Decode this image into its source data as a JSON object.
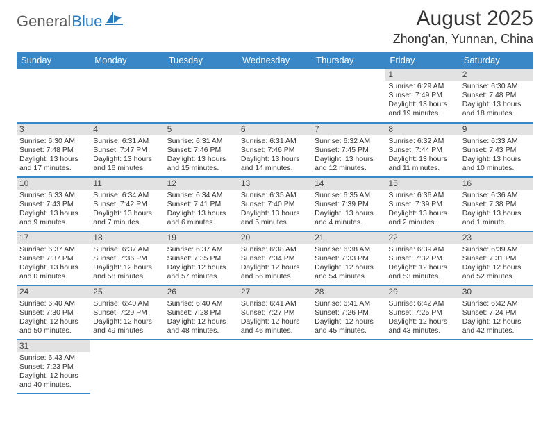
{
  "logo": {
    "text1": "General",
    "text2": "Blue"
  },
  "title": "August 2025",
  "location": "Zhong'an, Yunnan, China",
  "colors": {
    "header_bg": "#3a87c8",
    "header_text": "#ffffff",
    "daynum_bg": "#e2e2e2",
    "border": "#3a87c8",
    "logo_gray": "#5a5a5a",
    "logo_blue": "#2d7bbf"
  },
  "weekdays": [
    "Sunday",
    "Monday",
    "Tuesday",
    "Wednesday",
    "Thursday",
    "Friday",
    "Saturday"
  ],
  "weeks": [
    [
      null,
      null,
      null,
      null,
      null,
      {
        "n": "1",
        "sr": "Sunrise: 6:29 AM",
        "ss": "Sunset: 7:49 PM",
        "dl": "Daylight: 13 hours and 19 minutes."
      },
      {
        "n": "2",
        "sr": "Sunrise: 6:30 AM",
        "ss": "Sunset: 7:48 PM",
        "dl": "Daylight: 13 hours and 18 minutes."
      }
    ],
    [
      {
        "n": "3",
        "sr": "Sunrise: 6:30 AM",
        "ss": "Sunset: 7:48 PM",
        "dl": "Daylight: 13 hours and 17 minutes."
      },
      {
        "n": "4",
        "sr": "Sunrise: 6:31 AM",
        "ss": "Sunset: 7:47 PM",
        "dl": "Daylight: 13 hours and 16 minutes."
      },
      {
        "n": "5",
        "sr": "Sunrise: 6:31 AM",
        "ss": "Sunset: 7:46 PM",
        "dl": "Daylight: 13 hours and 15 minutes."
      },
      {
        "n": "6",
        "sr": "Sunrise: 6:31 AM",
        "ss": "Sunset: 7:46 PM",
        "dl": "Daylight: 13 hours and 14 minutes."
      },
      {
        "n": "7",
        "sr": "Sunrise: 6:32 AM",
        "ss": "Sunset: 7:45 PM",
        "dl": "Daylight: 13 hours and 12 minutes."
      },
      {
        "n": "8",
        "sr": "Sunrise: 6:32 AM",
        "ss": "Sunset: 7:44 PM",
        "dl": "Daylight: 13 hours and 11 minutes."
      },
      {
        "n": "9",
        "sr": "Sunrise: 6:33 AM",
        "ss": "Sunset: 7:43 PM",
        "dl": "Daylight: 13 hours and 10 minutes."
      }
    ],
    [
      {
        "n": "10",
        "sr": "Sunrise: 6:33 AM",
        "ss": "Sunset: 7:43 PM",
        "dl": "Daylight: 13 hours and 9 minutes."
      },
      {
        "n": "11",
        "sr": "Sunrise: 6:34 AM",
        "ss": "Sunset: 7:42 PM",
        "dl": "Daylight: 13 hours and 7 minutes."
      },
      {
        "n": "12",
        "sr": "Sunrise: 6:34 AM",
        "ss": "Sunset: 7:41 PM",
        "dl": "Daylight: 13 hours and 6 minutes."
      },
      {
        "n": "13",
        "sr": "Sunrise: 6:35 AM",
        "ss": "Sunset: 7:40 PM",
        "dl": "Daylight: 13 hours and 5 minutes."
      },
      {
        "n": "14",
        "sr": "Sunrise: 6:35 AM",
        "ss": "Sunset: 7:39 PM",
        "dl": "Daylight: 13 hours and 4 minutes."
      },
      {
        "n": "15",
        "sr": "Sunrise: 6:36 AM",
        "ss": "Sunset: 7:39 PM",
        "dl": "Daylight: 13 hours and 2 minutes."
      },
      {
        "n": "16",
        "sr": "Sunrise: 6:36 AM",
        "ss": "Sunset: 7:38 PM",
        "dl": "Daylight: 13 hours and 1 minute."
      }
    ],
    [
      {
        "n": "17",
        "sr": "Sunrise: 6:37 AM",
        "ss": "Sunset: 7:37 PM",
        "dl": "Daylight: 13 hours and 0 minutes."
      },
      {
        "n": "18",
        "sr": "Sunrise: 6:37 AM",
        "ss": "Sunset: 7:36 PM",
        "dl": "Daylight: 12 hours and 58 minutes."
      },
      {
        "n": "19",
        "sr": "Sunrise: 6:37 AM",
        "ss": "Sunset: 7:35 PM",
        "dl": "Daylight: 12 hours and 57 minutes."
      },
      {
        "n": "20",
        "sr": "Sunrise: 6:38 AM",
        "ss": "Sunset: 7:34 PM",
        "dl": "Daylight: 12 hours and 56 minutes."
      },
      {
        "n": "21",
        "sr": "Sunrise: 6:38 AM",
        "ss": "Sunset: 7:33 PM",
        "dl": "Daylight: 12 hours and 54 minutes."
      },
      {
        "n": "22",
        "sr": "Sunrise: 6:39 AM",
        "ss": "Sunset: 7:32 PM",
        "dl": "Daylight: 12 hours and 53 minutes."
      },
      {
        "n": "23",
        "sr": "Sunrise: 6:39 AM",
        "ss": "Sunset: 7:31 PM",
        "dl": "Daylight: 12 hours and 52 minutes."
      }
    ],
    [
      {
        "n": "24",
        "sr": "Sunrise: 6:40 AM",
        "ss": "Sunset: 7:30 PM",
        "dl": "Daylight: 12 hours and 50 minutes."
      },
      {
        "n": "25",
        "sr": "Sunrise: 6:40 AM",
        "ss": "Sunset: 7:29 PM",
        "dl": "Daylight: 12 hours and 49 minutes."
      },
      {
        "n": "26",
        "sr": "Sunrise: 6:40 AM",
        "ss": "Sunset: 7:28 PM",
        "dl": "Daylight: 12 hours and 48 minutes."
      },
      {
        "n": "27",
        "sr": "Sunrise: 6:41 AM",
        "ss": "Sunset: 7:27 PM",
        "dl": "Daylight: 12 hours and 46 minutes."
      },
      {
        "n": "28",
        "sr": "Sunrise: 6:41 AM",
        "ss": "Sunset: 7:26 PM",
        "dl": "Daylight: 12 hours and 45 minutes."
      },
      {
        "n": "29",
        "sr": "Sunrise: 6:42 AM",
        "ss": "Sunset: 7:25 PM",
        "dl": "Daylight: 12 hours and 43 minutes."
      },
      {
        "n": "30",
        "sr": "Sunrise: 6:42 AM",
        "ss": "Sunset: 7:24 PM",
        "dl": "Daylight: 12 hours and 42 minutes."
      }
    ],
    [
      {
        "n": "31",
        "sr": "Sunrise: 6:43 AM",
        "ss": "Sunset: 7:23 PM",
        "dl": "Daylight: 12 hours and 40 minutes."
      },
      null,
      null,
      null,
      null,
      null,
      null
    ]
  ]
}
